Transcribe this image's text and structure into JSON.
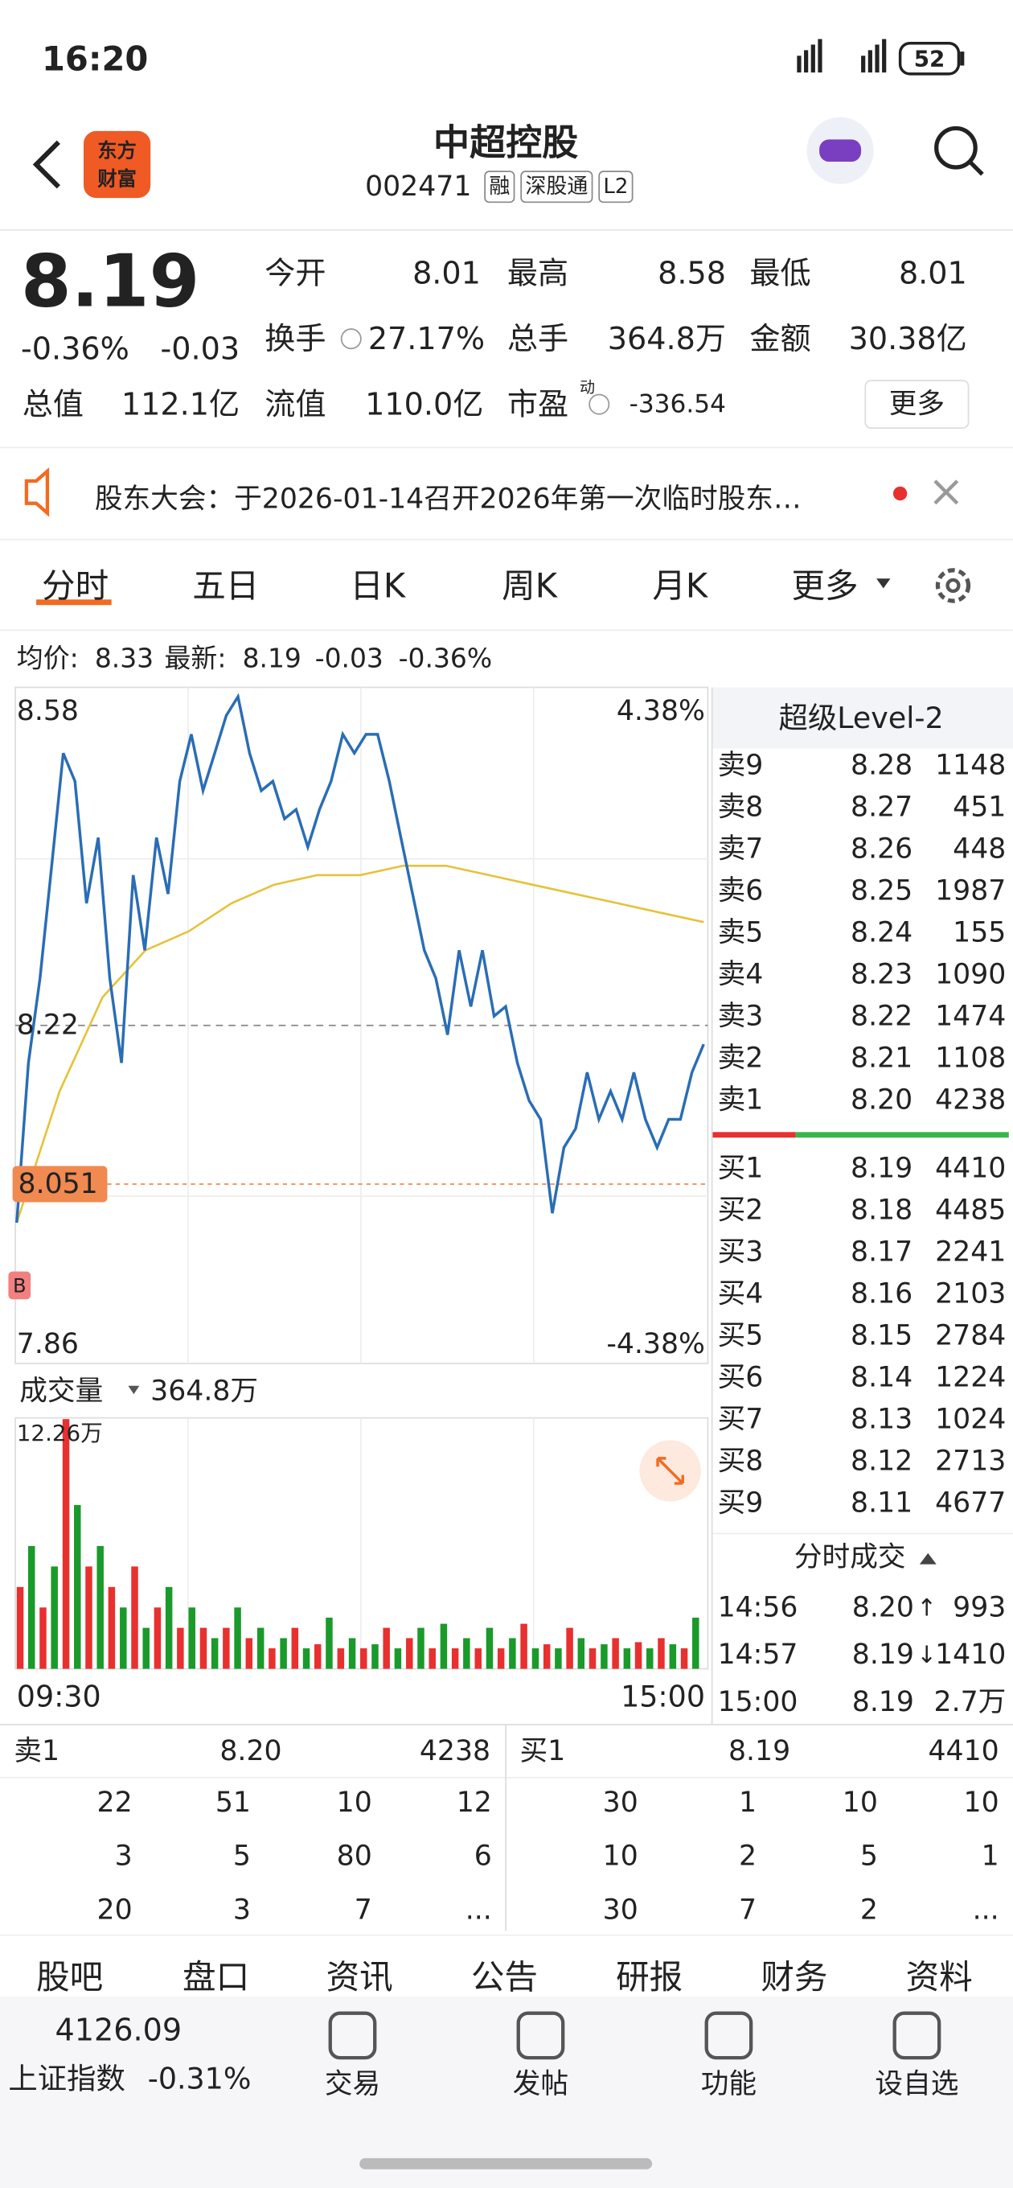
{
  "status": {
    "time": "16:20",
    "battery": "52"
  },
  "header": {
    "logo": [
      "东方",
      "财富"
    ],
    "title": "中超控股",
    "code": "002471",
    "tags": [
      "融",
      "深股通",
      "L2"
    ]
  },
  "quote": {
    "price": "8.19",
    "change_pct": "-0.36%",
    "change": "-0.03",
    "more": "更多",
    "fields": [
      {
        "label": "今开",
        "value": "8.01",
        "color": "#1a9a2a"
      },
      {
        "label": "最高",
        "value": "8.58",
        "color": "#e8302f"
      },
      {
        "label": "最低",
        "value": "8.01",
        "color": "#1a9a2a"
      },
      {
        "label": "换手",
        "value": "27.17%",
        "color": "#222"
      },
      {
        "label": "总手",
        "value": "364.8万",
        "color": "#222"
      },
      {
        "label": "金额",
        "value": "30.38亿",
        "color": "#222"
      },
      {
        "label": "总值",
        "value": "112.1亿",
        "color": "#222"
      },
      {
        "label": "流值",
        "value": "110.0亿",
        "color": "#222"
      },
      {
        "label": "市盈",
        "sup": "动",
        "value": "-336.54",
        "color": "#222"
      }
    ]
  },
  "notice": "股东大会：于2026-01-14召开2026年第一次临时股东…",
  "tabs": [
    "分时",
    "五日",
    "日K",
    "周K",
    "月K",
    "更多"
  ],
  "info": {
    "avg_label": "均价:",
    "avg": "8.33",
    "latest_label": "最新:",
    "latest": "8.19",
    "change": "-0.03",
    "change_pct": "-0.36%"
  },
  "intraday": {
    "type": "line",
    "ylim": [
      7.86,
      8.58
    ],
    "top_label": "8.58",
    "top_pct": "4.38%",
    "bottom_label": "7.86",
    "bottom_pct": "-4.38%",
    "prev_close": 8.22,
    "prev_close_label": "8.22",
    "cost": 8.051,
    "cost_label": "8.051",
    "marker": "B",
    "x_labels": [
      "09:30",
      "15:00"
    ],
    "price": {
      "color": "#2a6db5",
      "values": [
        8.01,
        8.18,
        8.27,
        8.39,
        8.51,
        8.48,
        8.35,
        8.42,
        8.27,
        8.18,
        8.38,
        8.3,
        8.42,
        8.36,
        8.48,
        8.53,
        8.47,
        8.51,
        8.55,
        8.57,
        8.51,
        8.47,
        8.48,
        8.44,
        8.45,
        8.41,
        8.45,
        8.48,
        8.53,
        8.51,
        8.53,
        8.53,
        8.48,
        8.42,
        8.36,
        8.3,
        8.27,
        8.21,
        8.3,
        8.24,
        8.3,
        8.23,
        8.24,
        8.18,
        8.14,
        8.12,
        8.02,
        8.09,
        8.11,
        8.17,
        8.12,
        8.15,
        8.12,
        8.17,
        8.12,
        8.09,
        8.12,
        8.12,
        8.17,
        8.2
      ]
    },
    "avg": {
      "color": "#e6c23a",
      "values": [
        8.01,
        8.15,
        8.25,
        8.3,
        8.32,
        8.35,
        8.37,
        8.38,
        8.38,
        8.39,
        8.39,
        8.38,
        8.37,
        8.36,
        8.35,
        8.34,
        8.33
      ]
    },
    "volume": {
      "label": "成交量",
      "total": "364.8万",
      "max_label": "12.26万",
      "ylim": [
        0,
        12.26
      ],
      "colors": [
        "#e8302f",
        "#1a9a2a"
      ],
      "values": [
        4,
        6,
        3,
        5,
        12.2,
        8,
        5,
        6,
        4,
        3,
        5,
        2,
        3,
        4,
        2,
        3,
        2,
        1.5,
        2,
        3,
        1.5,
        2,
        1,
        1.5,
        2,
        1,
        1.2,
        2.5,
        1,
        1.5,
        1,
        1.2,
        2,
        1,
        1.5,
        2,
        1,
        2.2,
        1,
        1.5,
        1,
        2,
        1,
        1.5,
        2.2,
        1,
        1.2,
        1,
        2,
        1.5,
        1,
        1.2,
        1.5,
        1,
        1.3,
        1,
        1.5,
        1.2,
        1,
        2.5
      ]
    }
  },
  "book": {
    "title": "超级Level-2",
    "asks": [
      {
        "label": "卖9",
        "price": "8.28",
        "volume": "1148",
        "color": "#e8302f"
      },
      {
        "label": "卖8",
        "price": "8.27",
        "volume": "451",
        "color": "#e8302f"
      },
      {
        "label": "卖7",
        "price": "8.26",
        "volume": "448",
        "color": "#e8302f"
      },
      {
        "label": "卖6",
        "price": "8.25",
        "volume": "1987",
        "color": "#e8302f"
      },
      {
        "label": "卖5",
        "price": "8.24",
        "volume": "155",
        "color": "#e8302f"
      },
      {
        "label": "卖4",
        "price": "8.23",
        "volume": "1090",
        "color": "#e8302f"
      },
      {
        "label": "卖3",
        "price": "8.22",
        "volume": "1474",
        "color": "#222"
      },
      {
        "label": "卖2",
        "price": "8.21",
        "volume": "1108",
        "color": "#1a9a2a"
      },
      {
        "label": "卖1",
        "price": "8.20",
        "volume": "4238",
        "color": "#1a9a2a"
      }
    ],
    "bids": [
      {
        "label": "买1",
        "price": "8.19",
        "volume": "4410"
      },
      {
        "label": "买2",
        "price": "8.18",
        "volume": "4485"
      },
      {
        "label": "买3",
        "price": "8.17",
        "volume": "2241"
      },
      {
        "label": "买4",
        "price": "8.16",
        "volume": "2103"
      },
      {
        "label": "买5",
        "price": "8.15",
        "volume": "2784"
      },
      {
        "label": "买6",
        "price": "8.14",
        "volume": "1224"
      },
      {
        "label": "买7",
        "price": "8.13",
        "volume": "1024"
      },
      {
        "label": "买8",
        "price": "8.12",
        "volume": "2713"
      },
      {
        "label": "买9",
        "price": "8.11",
        "volume": "4677"
      }
    ],
    "trades_title": "分时成交",
    "trades": [
      {
        "time": "14:56",
        "price": "8.20",
        "arrow": "↑",
        "volume": "993",
        "color": "#e8302f"
      },
      {
        "time": "14:57",
        "price": "8.19",
        "arrow": "↓",
        "volume": "1410",
        "color": "#1a9a2a"
      },
      {
        "time": "15:00",
        "price": "8.19",
        "volume": "2.7万",
        "color": "#1a9a2a"
      }
    ]
  },
  "queue": {
    "sell": {
      "label": "卖1",
      "price": "8.20",
      "volume": "4238",
      "rows": [
        [
          "22",
          "51",
          "10",
          "12"
        ],
        [
          "3",
          "5",
          "80",
          "6"
        ],
        [
          "20",
          "3",
          "7",
          "..."
        ]
      ]
    },
    "buy": {
      "label": "买1",
      "price": "8.19",
      "volume": "4410",
      "rows": [
        [
          "30",
          "1",
          "10",
          "10"
        ],
        [
          "10",
          "2",
          "5",
          "1"
        ],
        [
          "30",
          "7",
          "2",
          "..."
        ]
      ]
    }
  },
  "subtabs": [
    "股吧",
    "盘口",
    "资讯",
    "公告",
    "研报",
    "财务",
    "资料"
  ],
  "nav": {
    "index_value": "4126.09",
    "index_name": "上证指数",
    "index_change": "-0.31%",
    "items": [
      "交易",
      "发帖",
      "功能",
      "设自选"
    ]
  }
}
